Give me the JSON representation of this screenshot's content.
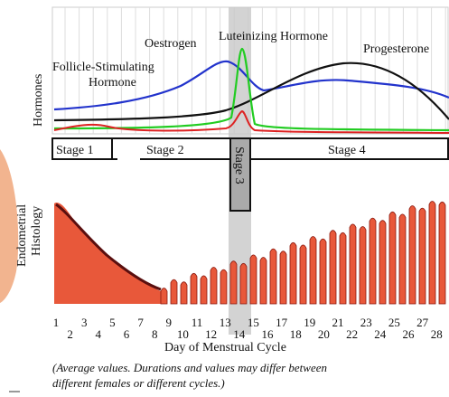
{
  "axis_labels": {
    "hormones": "Hormones",
    "histology": [
      "Endometrial",
      "Histology"
    ]
  },
  "hormone_labels": {
    "fsh": [
      "Follicle-Stimulating",
      "Hormone"
    ],
    "oestrogen": "Oestrogen",
    "lh": "Luteinizing  Hormone",
    "progesterone": "Progesterone"
  },
  "stages": [
    "Stage 1",
    "Stage 2",
    "Stage 3",
    "Stage 4"
  ],
  "days": [
    "1",
    "2",
    "3",
    "4",
    "5",
    "6",
    "7",
    "8",
    "9",
    "10",
    "11",
    "12",
    "13",
    "14",
    "15",
    "16",
    "17",
    "18",
    "19",
    "20",
    "21",
    "22",
    "23",
    "24",
    "25",
    "26",
    "27",
    "28"
  ],
  "x_axis_label": "Day of Menstrual Cycle",
  "caption": [
    "(Average values. Durations and values may differ between",
    "different females or different cycles.)"
  ]
}
